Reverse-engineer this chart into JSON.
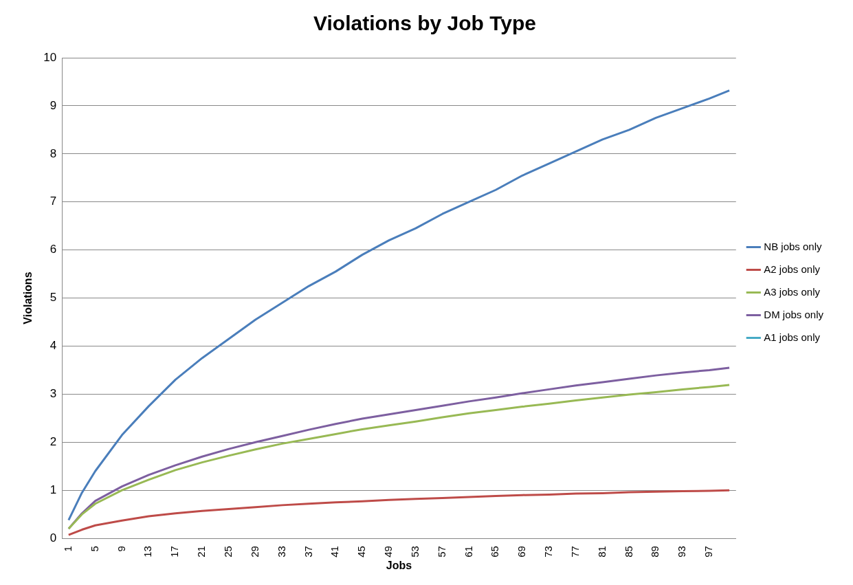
{
  "chart_data": {
    "type": "line",
    "title": "Violations by Job Type",
    "xlabel": "Jobs",
    "ylabel": "Violations",
    "x": [
      1,
      3,
      5,
      9,
      13,
      17,
      21,
      25,
      29,
      33,
      37,
      41,
      45,
      49,
      53,
      57,
      61,
      65,
      69,
      73,
      77,
      81,
      85,
      89,
      93,
      97,
      100
    ],
    "xlim": [
      0,
      101
    ],
    "xticks": [
      1,
      5,
      9,
      13,
      17,
      21,
      25,
      29,
      33,
      37,
      41,
      45,
      49,
      53,
      57,
      61,
      65,
      69,
      73,
      77,
      81,
      85,
      89,
      93,
      97
    ],
    "ylim": [
      0,
      10
    ],
    "yticks": [
      0,
      1,
      2,
      3,
      4,
      5,
      6,
      7,
      8,
      9,
      10
    ],
    "grid": "y",
    "legend": "right",
    "marker": "none",
    "line_style": "solid",
    "series": [
      {
        "name": "NB jobs only",
        "color": "#4a7ebb",
        "values": [
          0.38,
          0.95,
          1.4,
          2.15,
          2.75,
          3.3,
          3.75,
          4.15,
          4.55,
          4.9,
          5.25,
          5.55,
          5.9,
          6.2,
          6.45,
          6.75,
          7.0,
          7.25,
          7.55,
          7.8,
          8.05,
          8.3,
          8.5,
          8.75,
          8.95,
          9.15,
          9.32
        ]
      },
      {
        "name": "A2 jobs only",
        "color": "#be4b48",
        "values": [
          0.07,
          0.18,
          0.27,
          0.37,
          0.46,
          0.52,
          0.57,
          0.61,
          0.65,
          0.69,
          0.72,
          0.75,
          0.77,
          0.8,
          0.82,
          0.84,
          0.86,
          0.88,
          0.9,
          0.91,
          0.93,
          0.94,
          0.96,
          0.97,
          0.98,
          0.99,
          1.0
        ]
      },
      {
        "name": "A3 jobs only",
        "color": "#98b954",
        "values": [
          0.2,
          0.5,
          0.72,
          1.0,
          1.22,
          1.42,
          1.58,
          1.72,
          1.85,
          1.97,
          2.07,
          2.17,
          2.27,
          2.35,
          2.43,
          2.52,
          2.6,
          2.67,
          2.74,
          2.8,
          2.87,
          2.93,
          2.99,
          3.04,
          3.1,
          3.15,
          3.19
        ]
      },
      {
        "name": "DM jobs only",
        "color": "#7d5fa0",
        "values": [
          0.2,
          0.52,
          0.78,
          1.08,
          1.32,
          1.52,
          1.7,
          1.86,
          2.0,
          2.13,
          2.26,
          2.38,
          2.49,
          2.58,
          2.67,
          2.76,
          2.85,
          2.93,
          3.02,
          3.1,
          3.18,
          3.25,
          3.32,
          3.39,
          3.45,
          3.5,
          3.55
        ]
      },
      {
        "name": "A1 jobs only",
        "color": "#46aac5",
        "values": [
          null,
          null,
          null,
          null,
          null,
          null,
          null,
          null,
          null,
          null,
          null,
          null,
          null,
          null,
          null,
          null,
          null,
          null,
          null,
          null,
          null,
          null,
          null,
          null,
          null,
          null,
          null
        ]
      }
    ]
  }
}
